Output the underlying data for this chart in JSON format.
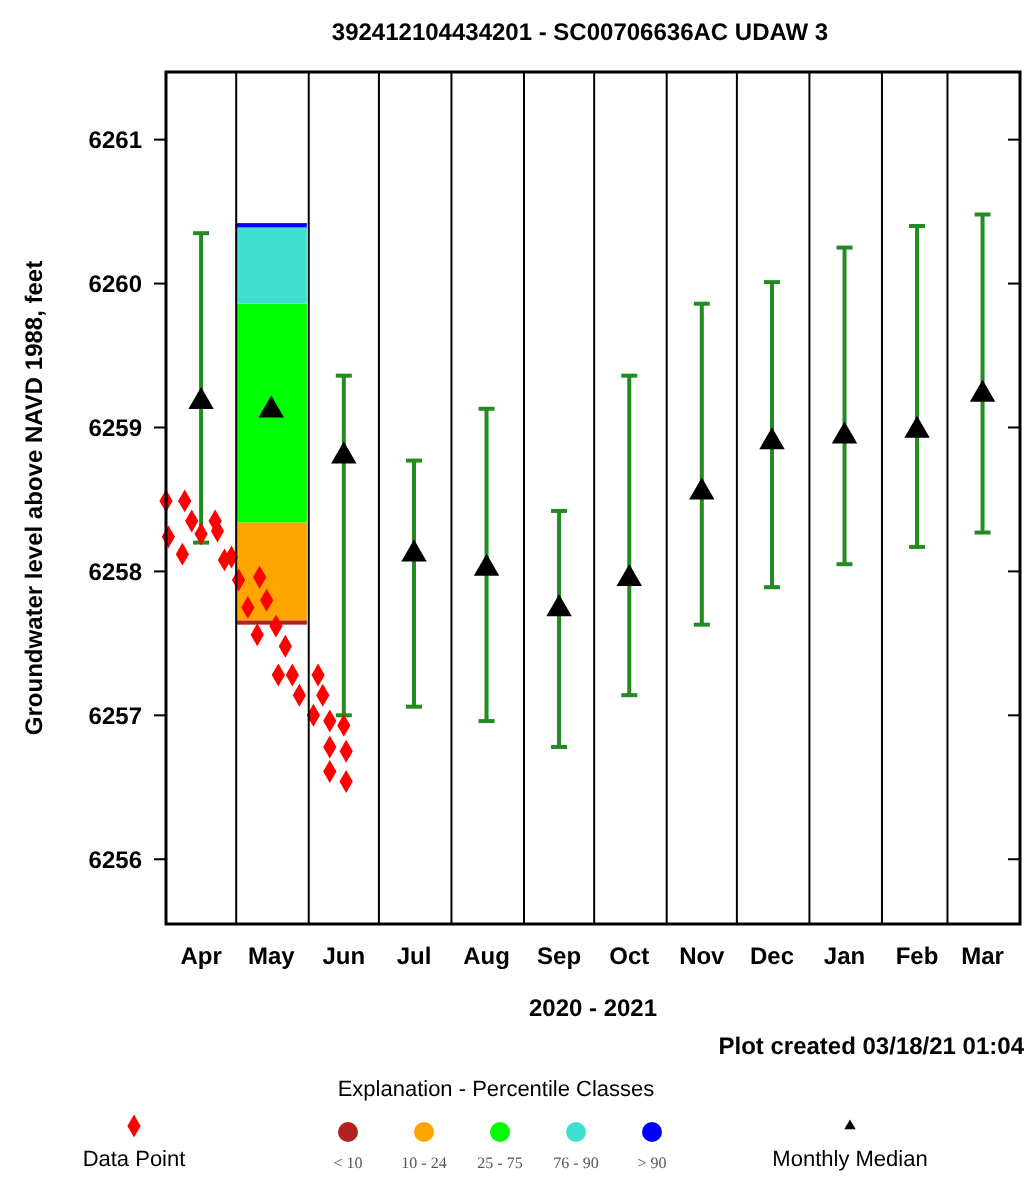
{
  "chart_data": {
    "type": "scatter",
    "title": "392412104434201 - SC00706636AC UDAW 3",
    "xlabel": "2020 - 2021",
    "ylabel": "Groundwater level above NAVD 1988, feet",
    "legend_title": "Explanation - Percentile Classes",
    "annotations": [
      "Plot created 03/18/21 01:04"
    ],
    "xlim": [
      "2020-04-01",
      "2021-04-01"
    ],
    "xticks": [
      {
        "value": "2020-04-16",
        "label": "Apr"
      },
      {
        "value": "2020-05-01",
        "label": null
      },
      {
        "value": "2020-05-16",
        "label": "May"
      },
      {
        "value": "2020-06-01",
        "label": null
      },
      {
        "value": "2020-06-16",
        "label": "Jun"
      },
      {
        "value": "2020-07-01",
        "label": null
      },
      {
        "value": "2020-07-16",
        "label": "Jul"
      },
      {
        "value": "2020-08-01",
        "label": null
      },
      {
        "value": "2020-08-16",
        "label": "Aug"
      },
      {
        "value": "2020-09-01",
        "label": null
      },
      {
        "value": "2020-09-16",
        "label": "Sep"
      },
      {
        "value": "2020-10-01",
        "label": null
      },
      {
        "value": "2020-10-16",
        "label": "Oct"
      },
      {
        "value": "2020-11-01",
        "label": null
      },
      {
        "value": "2020-11-16",
        "label": "Nov"
      },
      {
        "value": "2020-12-01",
        "label": null
      },
      {
        "value": "2020-12-16",
        "label": "Dec"
      },
      {
        "value": "2021-01-01",
        "label": null
      },
      {
        "value": "2021-01-16",
        "label": "Jan"
      },
      {
        "value": "2021-02-01",
        "label": null
      },
      {
        "value": "2021-02-16",
        "label": "Feb"
      },
      {
        "value": "2021-03-01",
        "label": null
      },
      {
        "value": "2021-03-16",
        "label": "Mar"
      }
    ],
    "ylim": [
      6255.55,
      6261.47
    ],
    "yticks": [
      6256,
      6257,
      6258,
      6259,
      6260,
      6261
    ],
    "grid": "x",
    "legend": "bottom",
    "series": [
      {
        "name": "Data Point",
        "color": "#ff0000",
        "marker": "diamond",
        "x": [
          "2020-04-01",
          "2020-04-02",
          "2020-04-08",
          "2020-04-09",
          "2020-04-12",
          "2020-04-16",
          "2020-04-22",
          "2020-04-23",
          "2020-04-26",
          "2020-04-29",
          "2020-05-02",
          "2020-05-06",
          "2020-05-10",
          "2020-05-11",
          "2020-05-14",
          "2020-05-18",
          "2020-05-19",
          "2020-05-22",
          "2020-05-25",
          "2020-05-28",
          "2020-06-03",
          "2020-06-05",
          "2020-06-07",
          "2020-06-10",
          "2020-06-10",
          "2020-06-10",
          "2020-06-16",
          "2020-06-17",
          "2020-06-17"
        ],
        "values": [
          6258.49,
          6258.24,
          6258.12,
          6258.49,
          6258.35,
          6258.26,
          6258.35,
          6258.28,
          6258.08,
          6258.1,
          6257.94,
          6257.75,
          6257.56,
          6257.96,
          6257.8,
          6257.62,
          6257.28,
          6257.48,
          6257.28,
          6257.14,
          6257.0,
          6257.28,
          6257.14,
          6256.96,
          6256.78,
          6256.61,
          6256.93,
          6256.75,
          6256.54
        ]
      },
      {
        "name": "< 10",
        "type": "bar",
        "color": "#b22222",
        "x": [
          "2020-05-16"
        ],
        "base": [
          6257.63
        ],
        "values": [
          0.03
        ]
      },
      {
        "name": "10 - 24",
        "type": "bar",
        "color": "#ffa500",
        "x": [
          "2020-05-16"
        ],
        "base": [
          6257.66
        ],
        "values": [
          0.68
        ]
      },
      {
        "name": "25 - 75",
        "type": "bar",
        "color": "#00ff00",
        "x": [
          "2020-05-16"
        ],
        "base": [
          6258.34
        ],
        "values": [
          1.52
        ]
      },
      {
        "name": "76 - 90",
        "type": "bar",
        "color": "#40e0d0",
        "x": [
          "2020-05-16"
        ],
        "base": [
          6259.86
        ],
        "values": [
          0.53
        ]
      },
      {
        "name": "> 90",
        "type": "bar",
        "color": "#0000ff",
        "x": [
          "2020-05-16"
        ],
        "base": [
          6260.39
        ],
        "values": [
          0.03
        ]
      },
      {
        "name": "Monthly Median",
        "color": "#000000",
        "marker": "triangle",
        "x": [
          "2020-04-16",
          "2020-05-16",
          "2020-06-16",
          "2020-07-16",
          "2020-08-16",
          "2020-09-16",
          "2020-10-16",
          "2020-11-16",
          "2020-12-16",
          "2021-01-16",
          "2021-02-16",
          "2021-03-16"
        ],
        "values": [
          6259.18,
          6259.12,
          6258.8,
          6258.12,
          6258.02,
          6257.74,
          6257.95,
          6258.55,
          6258.9,
          6258.94,
          6258.98,
          6259.23
        ],
        "errors": [
          [
            6258.2,
            6260.35
          ],
          null,
          [
            6257.0,
            6259.36
          ],
          [
            6257.06,
            6258.77
          ],
          [
            6256.96,
            6259.13
          ],
          [
            6256.78,
            6258.42
          ],
          [
            6257.14,
            6259.36
          ],
          [
            6257.63,
            6259.86
          ],
          [
            6257.89,
            6260.01
          ],
          [
            6258.05,
            6260.25
          ],
          [
            6258.17,
            6260.4
          ],
          [
            6258.27,
            6260.48
          ]
        ]
      }
    ]
  }
}
